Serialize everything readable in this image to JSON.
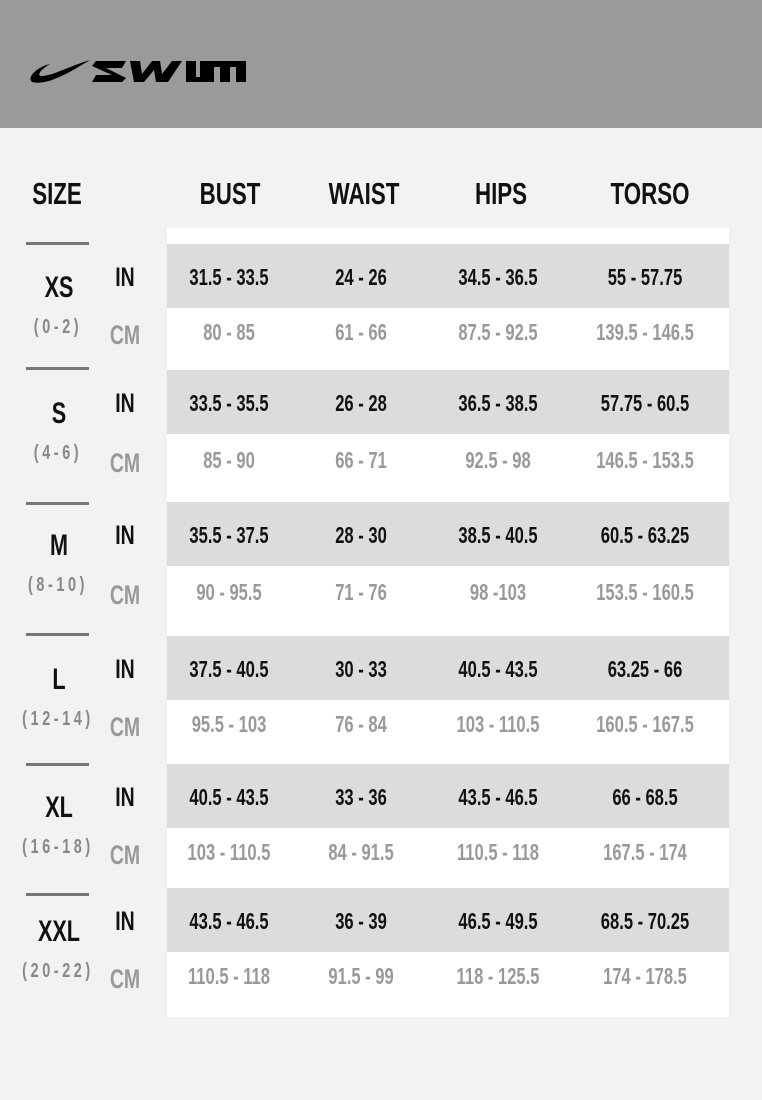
{
  "brand": {
    "logo_text": "NIKE SWIM",
    "banner_color": "#9a9a9a"
  },
  "headers": {
    "size": "SIZE",
    "columns": [
      "BUST",
      "WAIST",
      "HIPS",
      "TORSO"
    ]
  },
  "units": {
    "in": "IN",
    "cm": "CM"
  },
  "rows": [
    {
      "size": "XS",
      "range": "(0-2)",
      "in": [
        "31.5 - 33.5",
        "24 - 26",
        "34.5 - 36.5",
        "55 - 57.75"
      ],
      "cm": [
        "80 - 85",
        "61 - 66",
        "87.5 - 92.5",
        "139.5 - 146.5"
      ]
    },
    {
      "size": "S",
      "range": "(4-6)",
      "in": [
        "33.5 - 35.5",
        "26 - 28",
        "36.5 - 38.5",
        "57.75 - 60.5"
      ],
      "cm": [
        "85 - 90",
        "66 - 71",
        "92.5 - 98",
        "146.5 - 153.5"
      ]
    },
    {
      "size": "M",
      "range": "(8-10)",
      "in": [
        "35.5 - 37.5",
        "28 - 30",
        "38.5 - 40.5",
        "60.5 - 63.25"
      ],
      "cm": [
        "90 - 95.5",
        "71 - 76",
        "98 -103",
        "153.5 - 160.5"
      ]
    },
    {
      "size": "L",
      "range": "(12-14)",
      "in": [
        "37.5 - 40.5",
        "30 - 33",
        "40.5 - 43.5",
        "63.25 - 66"
      ],
      "cm": [
        "95.5 - 103",
        "76 - 84",
        "103 - 110.5",
        "160.5 - 167.5"
      ]
    },
    {
      "size": "XL",
      "range": "(16-18)",
      "in": [
        "40.5 - 43.5",
        "33 - 36",
        "43.5 - 46.5",
        "66 - 68.5"
      ],
      "cm": [
        "103 - 110.5",
        "84 - 91.5",
        "110.5 - 118",
        "167.5 - 174"
      ]
    },
    {
      "size": "XXL",
      "range": "(20-22)",
      "in": [
        "43.5 - 46.5",
        "36 - 39",
        "46.5 - 49.5",
        "68.5 - 70.25"
      ],
      "cm": [
        "110.5 - 118",
        "91.5 - 99",
        "118 - 125.5",
        "174 - 178.5"
      ]
    }
  ]
}
